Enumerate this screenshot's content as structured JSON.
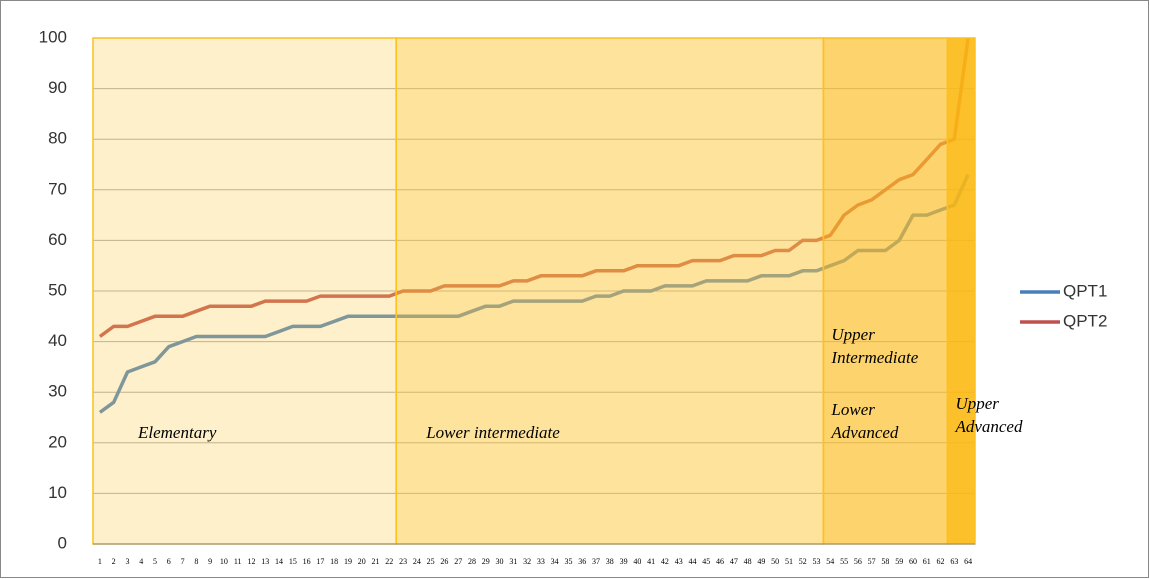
{
  "chart_data": {
    "type": "line",
    "categories": [
      "1",
      "2",
      "3",
      "4",
      "5",
      "6",
      "7",
      "8",
      "9",
      "10",
      "11",
      "12",
      "13",
      "14",
      "15",
      "16",
      "17",
      "18",
      "19",
      "20",
      "21",
      "22",
      "23",
      "24",
      "25",
      "26",
      "27",
      "28",
      "29",
      "30",
      "31",
      "32",
      "33",
      "34",
      "35",
      "36",
      "37",
      "38",
      "39",
      "40",
      "41",
      "42",
      "43",
      "44",
      "45",
      "46",
      "47",
      "48",
      "49",
      "50",
      "51",
      "52",
      "53",
      "54",
      "55",
      "56",
      "57",
      "58",
      "59",
      "60",
      "61",
      "62",
      "63",
      "64"
    ],
    "series": [
      {
        "name": "QPT1",
        "color": "#4a7ebb",
        "values": [
          26,
          28,
          34,
          35,
          36,
          39,
          40,
          41,
          41,
          41,
          41,
          41,
          41,
          42,
          43,
          43,
          43,
          44,
          45,
          45,
          45,
          45,
          45,
          45,
          45,
          45,
          45,
          46,
          47,
          47,
          48,
          48,
          48,
          48,
          48,
          48,
          49,
          49,
          50,
          50,
          50,
          51,
          51,
          51,
          52,
          52,
          52,
          52,
          53,
          53,
          53,
          54,
          54,
          55,
          56,
          58,
          58,
          58,
          60,
          65,
          65,
          66,
          67,
          73
        ]
      },
      {
        "name": "QPT2",
        "color": "#c0504d",
        "values": [
          41,
          43,
          43,
          44,
          45,
          45,
          45,
          46,
          47,
          47,
          47,
          47,
          48,
          48,
          48,
          48,
          49,
          49,
          49,
          49,
          49,
          49,
          50,
          50,
          50,
          51,
          51,
          51,
          51,
          51,
          52,
          52,
          53,
          53,
          53,
          53,
          54,
          54,
          54,
          55,
          55,
          55,
          55,
          56,
          56,
          56,
          57,
          57,
          57,
          58,
          58,
          60,
          60,
          61,
          65,
          67,
          68,
          70,
          72,
          73,
          76,
          79,
          80,
          100
        ]
      }
    ],
    "ylim": [
      0,
      100
    ],
    "yticks": [
      0,
      10,
      20,
      30,
      40,
      50,
      60,
      70,
      80,
      90,
      100
    ],
    "legend": "right",
    "bands": [
      {
        "start": 1,
        "end": 22,
        "color": "rgba(253,204,80,0.3)",
        "labels": [
          [
            "Elementary"
          ]
        ]
      },
      {
        "start": 23,
        "end": 53,
        "color": "rgba(253,200,60,0.5)",
        "labels": [
          [
            "Lower intermediate"
          ]
        ]
      },
      {
        "start": 54,
        "end": 62,
        "color": "rgba(252,190,40,0.68)",
        "labels": [
          [
            "Upper",
            "Intermediate"
          ],
          [
            "Lower",
            "Advanced"
          ]
        ]
      },
      {
        "start": 63,
        "end": 64,
        "color": "rgba(252,185,20,0.9)",
        "labels": [
          [
            "Upper",
            "Advanced"
          ]
        ]
      }
    ]
  }
}
